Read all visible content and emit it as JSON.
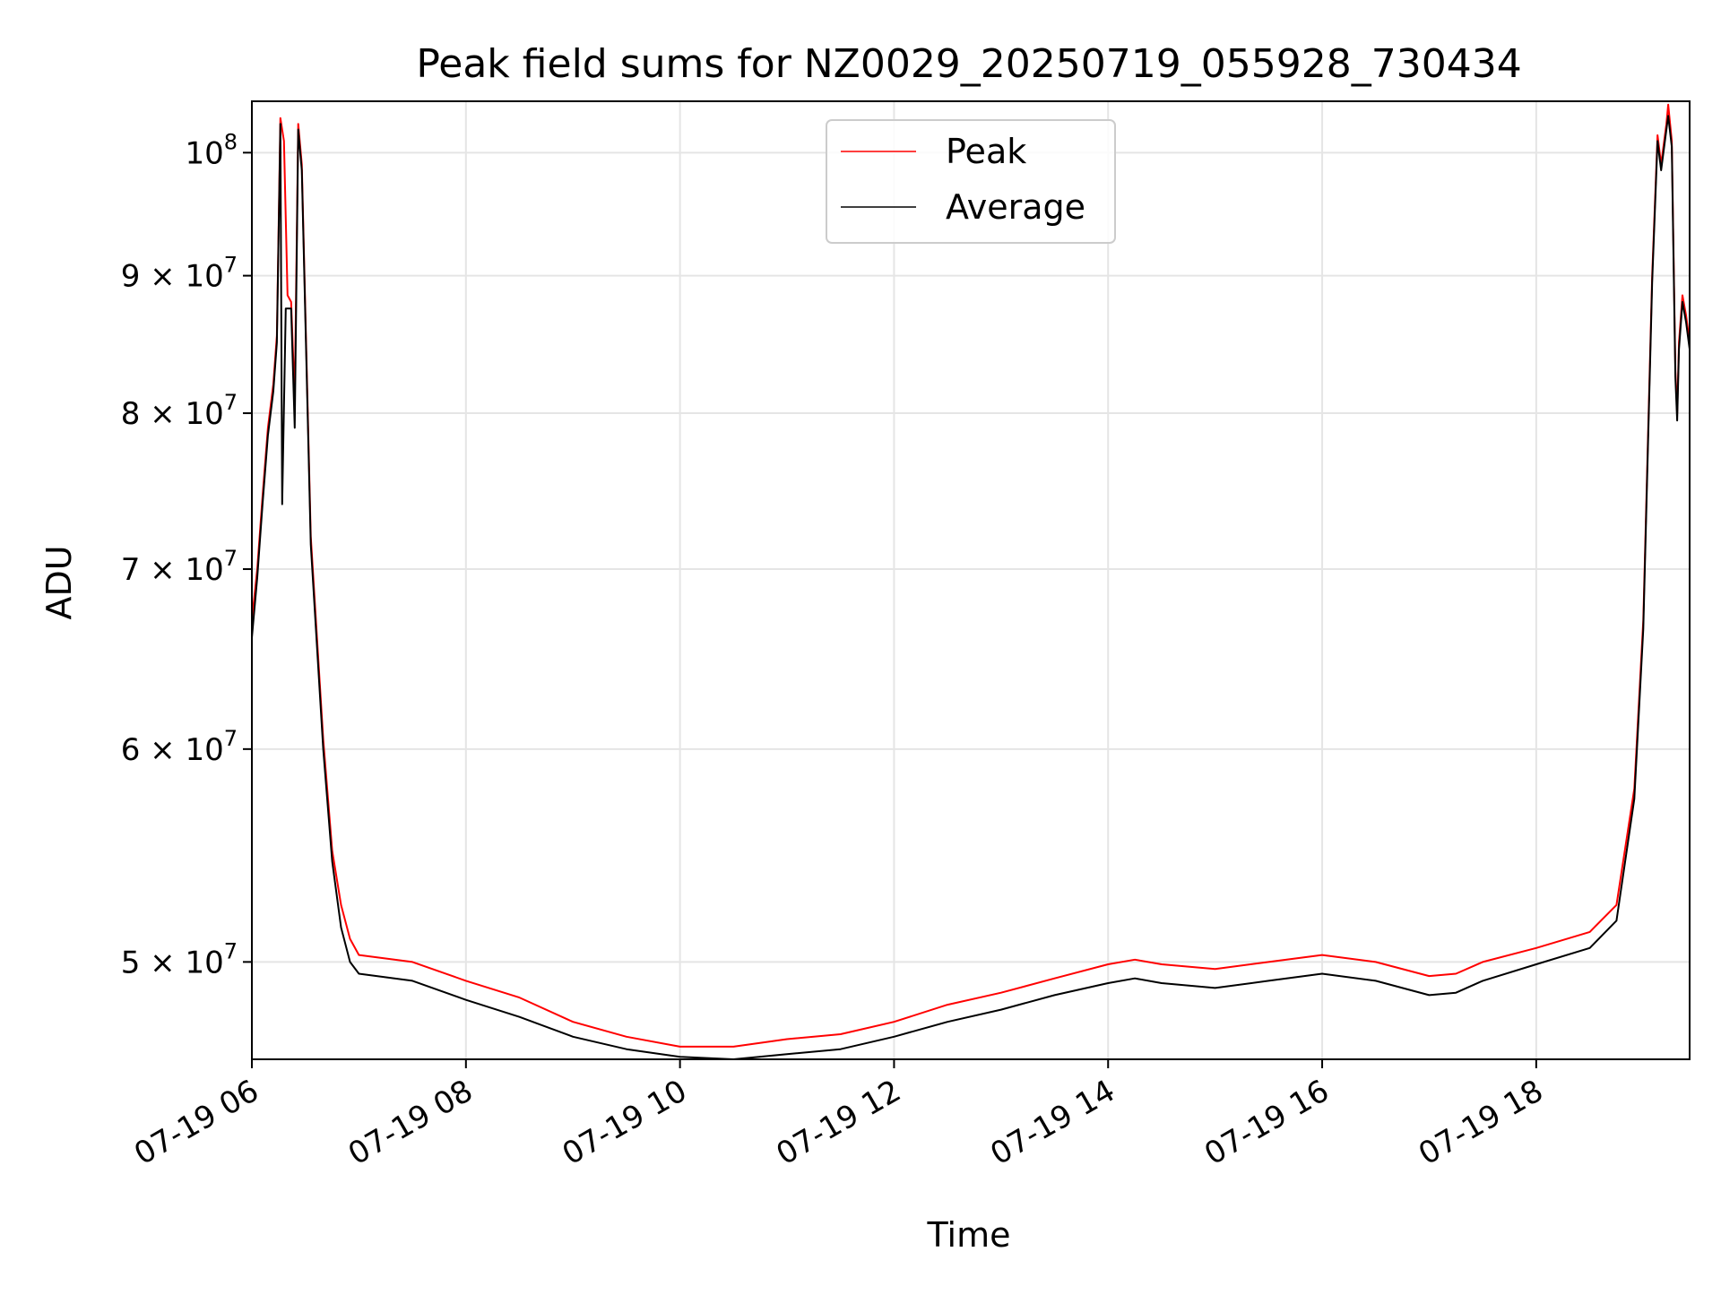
{
  "chart_data": {
    "type": "line",
    "title": "Peak field sums for NZ0029_20250719_055928_730434",
    "xlabel": "Time",
    "ylabel": "ADU",
    "xscale": "time",
    "yscale": "log",
    "xlim": [
      "2025-07-19 06:00",
      "2025-07-19 19:26"
    ],
    "ylim": [
      46000000,
      104500000
    ],
    "grid": true,
    "legend_position": "top-center",
    "x_ticks": [
      {
        "value": "2025-07-19 06:00",
        "label": "07-19 06"
      },
      {
        "value": "2025-07-19 08:00",
        "label": "07-19 08"
      },
      {
        "value": "2025-07-19 10:00",
        "label": "07-19 10"
      },
      {
        "value": "2025-07-19 12:00",
        "label": "07-19 12"
      },
      {
        "value": "2025-07-19 14:00",
        "label": "07-19 14"
      },
      {
        "value": "2025-07-19 16:00",
        "label": "07-19 16"
      },
      {
        "value": "2025-07-19 18:00",
        "label": "07-19 18"
      }
    ],
    "y_ticks": [
      {
        "value": 50000000,
        "mantissa": "5 × 10",
        "exp": "7"
      },
      {
        "value": 60000000,
        "mantissa": "6 × 10",
        "exp": "7"
      },
      {
        "value": 70000000,
        "mantissa": "7 × 10",
        "exp": "7"
      },
      {
        "value": 80000000,
        "mantissa": "8 × 10",
        "exp": "7"
      },
      {
        "value": 90000000,
        "mantissa": "9 × 10",
        "exp": "7"
      },
      {
        "value": 100000000,
        "mantissa": "10",
        "exp": "8"
      }
    ],
    "series": [
      {
        "name": "Peak",
        "color": "#ff0000",
        "points": [
          [
            "2025-07-19 06:00",
            67000000
          ],
          [
            "2025-07-19 06:03",
            70000000
          ],
          [
            "2025-07-19 06:06",
            74500000
          ],
          [
            "2025-07-19 06:09",
            79000000
          ],
          [
            "2025-07-19 06:12",
            82000000
          ],
          [
            "2025-07-19 06:14",
            85500000
          ],
          [
            "2025-07-19 06:16",
            103000000
          ],
          [
            "2025-07-19 06:18",
            101000000
          ],
          [
            "2025-07-19 06:20",
            88500000
          ],
          [
            "2025-07-19 06:22",
            88000000
          ],
          [
            "2025-07-19 06:24",
            81000000
          ],
          [
            "2025-07-19 06:26",
            102500000
          ],
          [
            "2025-07-19 06:28",
            99000000
          ],
          [
            "2025-07-19 06:33",
            72000000
          ],
          [
            "2025-07-19 06:40",
            60500000
          ],
          [
            "2025-07-19 06:45",
            55000000
          ],
          [
            "2025-07-19 06:50",
            52500000
          ],
          [
            "2025-07-19 06:55",
            51000000
          ],
          [
            "2025-07-19 07:00",
            50300000
          ],
          [
            "2025-07-19 07:30",
            50000000
          ],
          [
            "2025-07-19 08:00",
            49200000
          ],
          [
            "2025-07-19 08:30",
            48500000
          ],
          [
            "2025-07-19 09:00",
            47500000
          ],
          [
            "2025-07-19 09:30",
            46900000
          ],
          [
            "2025-07-19 10:00",
            46500000
          ],
          [
            "2025-07-19 10:30",
            46500000
          ],
          [
            "2025-07-19 11:00",
            46800000
          ],
          [
            "2025-07-19 11:30",
            47000000
          ],
          [
            "2025-07-19 12:00",
            47500000
          ],
          [
            "2025-07-19 12:30",
            48200000
          ],
          [
            "2025-07-19 13:00",
            48700000
          ],
          [
            "2025-07-19 13:30",
            49300000
          ],
          [
            "2025-07-19 14:00",
            49900000
          ],
          [
            "2025-07-19 14:15",
            50100000
          ],
          [
            "2025-07-19 14:30",
            49900000
          ],
          [
            "2025-07-19 15:00",
            49700000
          ],
          [
            "2025-07-19 15:30",
            50000000
          ],
          [
            "2025-07-19 16:00",
            50300000
          ],
          [
            "2025-07-19 16:30",
            50000000
          ],
          [
            "2025-07-19 17:00",
            49400000
          ],
          [
            "2025-07-19 17:15",
            49500000
          ],
          [
            "2025-07-19 17:30",
            50000000
          ],
          [
            "2025-07-19 18:00",
            50600000
          ],
          [
            "2025-07-19 18:30",
            51300000
          ],
          [
            "2025-07-19 18:45",
            52500000
          ],
          [
            "2025-07-19 18:55",
            58000000
          ],
          [
            "2025-07-19 19:00",
            67000000
          ],
          [
            "2025-07-19 19:05",
            90000000
          ],
          [
            "2025-07-19 19:08",
            101500000
          ],
          [
            "2025-07-19 19:10",
            99000000
          ],
          [
            "2025-07-19 19:13",
            102500000
          ],
          [
            "2025-07-19 19:14",
            104200000
          ],
          [
            "2025-07-19 19:16",
            101000000
          ],
          [
            "2025-07-19 19:18",
            83000000
          ],
          [
            "2025-07-19 19:19",
            80000000
          ],
          [
            "2025-07-19 19:20",
            85000000
          ],
          [
            "2025-07-19 19:22",
            88500000
          ],
          [
            "2025-07-19 19:24",
            87000000
          ],
          [
            "2025-07-19 19:26",
            85000000
          ]
        ]
      },
      {
        "name": "Average",
        "color": "#000000",
        "points": [
          [
            "2025-07-19 06:00",
            66000000
          ],
          [
            "2025-07-19 06:03",
            69500000
          ],
          [
            "2025-07-19 06:06",
            74000000
          ],
          [
            "2025-07-19 06:09",
            78500000
          ],
          [
            "2025-07-19 06:12",
            81500000
          ],
          [
            "2025-07-19 06:14",
            85000000
          ],
          [
            "2025-07-19 06:16",
            102500000
          ],
          [
            "2025-07-19 06:17",
            74000000
          ],
          [
            "2025-07-19 06:19",
            87500000
          ],
          [
            "2025-07-19 06:22",
            87500000
          ],
          [
            "2025-07-19 06:24",
            79000000
          ],
          [
            "2025-07-19 06:26",
            102000000
          ],
          [
            "2025-07-19 06:28",
            98500000
          ],
          [
            "2025-07-19 06:33",
            71500000
          ],
          [
            "2025-07-19 06:40",
            60000000
          ],
          [
            "2025-07-19 06:45",
            54500000
          ],
          [
            "2025-07-19 06:50",
            51500000
          ],
          [
            "2025-07-19 06:55",
            50000000
          ],
          [
            "2025-07-19 07:00",
            49500000
          ],
          [
            "2025-07-19 07:30",
            49200000
          ],
          [
            "2025-07-19 08:00",
            48400000
          ],
          [
            "2025-07-19 08:30",
            47700000
          ],
          [
            "2025-07-19 09:00",
            46900000
          ],
          [
            "2025-07-19 09:30",
            46400000
          ],
          [
            "2025-07-19 10:00",
            46100000
          ],
          [
            "2025-07-19 10:30",
            46000000
          ],
          [
            "2025-07-19 11:00",
            46200000
          ],
          [
            "2025-07-19 11:30",
            46400000
          ],
          [
            "2025-07-19 12:00",
            46900000
          ],
          [
            "2025-07-19 12:30",
            47500000
          ],
          [
            "2025-07-19 13:00",
            48000000
          ],
          [
            "2025-07-19 13:30",
            48600000
          ],
          [
            "2025-07-19 14:00",
            49100000
          ],
          [
            "2025-07-19 14:15",
            49300000
          ],
          [
            "2025-07-19 14:30",
            49100000
          ],
          [
            "2025-07-19 15:00",
            48900000
          ],
          [
            "2025-07-19 15:30",
            49200000
          ],
          [
            "2025-07-19 16:00",
            49500000
          ],
          [
            "2025-07-19 16:30",
            49200000
          ],
          [
            "2025-07-19 17:00",
            48600000
          ],
          [
            "2025-07-19 17:15",
            48700000
          ],
          [
            "2025-07-19 17:30",
            49200000
          ],
          [
            "2025-07-19 18:00",
            49900000
          ],
          [
            "2025-07-19 18:30",
            50600000
          ],
          [
            "2025-07-19 18:45",
            51800000
          ],
          [
            "2025-07-19 18:55",
            57500000
          ],
          [
            "2025-07-19 19:00",
            66500000
          ],
          [
            "2025-07-19 19:05",
            89500000
          ],
          [
            "2025-07-19 19:08",
            101000000
          ],
          [
            "2025-07-19 19:10",
            98500000
          ],
          [
            "2025-07-19 19:13",
            102000000
          ],
          [
            "2025-07-19 19:14",
            103200000
          ],
          [
            "2025-07-19 19:16",
            100500000
          ],
          [
            "2025-07-19 19:18",
            82500000
          ],
          [
            "2025-07-19 19:19",
            79500000
          ],
          [
            "2025-07-19 19:20",
            84500000
          ],
          [
            "2025-07-19 19:22",
            88000000
          ],
          [
            "2025-07-19 19:24",
            86500000
          ],
          [
            "2025-07-19 19:26",
            84500000
          ]
        ]
      }
    ]
  }
}
